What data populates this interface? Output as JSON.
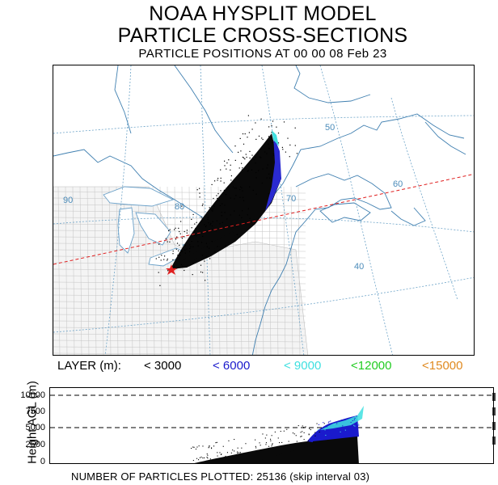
{
  "title": {
    "line1": "NOAA HYSPLIT MODEL",
    "line2": "PARTICLE CROSS-SECTIONS",
    "line3": "PARTICLE POSITIONS AT 00 00   08 Feb 23"
  },
  "map": {
    "lat_labels": [
      "50",
      "40"
    ],
    "lon_labels": [
      "90",
      "80",
      "70",
      "60"
    ],
    "source_marker": "source-star",
    "cross_section_line_color": "#e02020"
  },
  "legend": {
    "prefix": "LAYER (m):",
    "items": [
      {
        "label": "< 3000",
        "color": "#000000"
      },
      {
        "label": "< 6000",
        "color": "#1a1acc"
      },
      {
        "label": "< 9000",
        "color": "#40e0e0"
      },
      {
        "label": "<12000",
        "color": "#22cc22"
      },
      {
        "label": "<15000",
        "color": "#e08a20"
      }
    ]
  },
  "cross_section": {
    "ylabel": "Height AGL (m)",
    "yticks": [
      "10000",
      "7500",
      "5000",
      "2500",
      "0"
    ],
    "dashed_levels": [
      10000,
      5000
    ]
  },
  "footer": {
    "text": "NUMBER OF PARTICLES PLOTTED:  25136  (skip interval    03)"
  }
}
